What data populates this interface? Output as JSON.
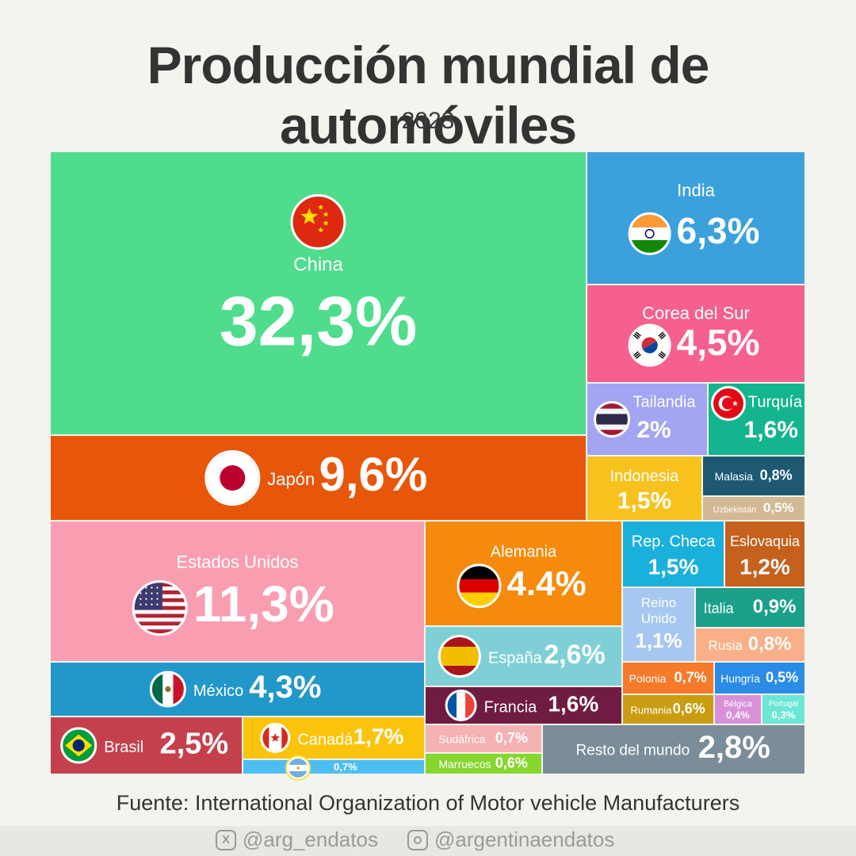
{
  "header": {
    "title": "Producción mundial de automóviles",
    "subtitle": "2023"
  },
  "chart_data": {
    "type": "treemap",
    "unit": "%",
    "items": [
      {
        "name": "China",
        "value": 32.3,
        "label": "32,3%",
        "color": "#4fdc8c",
        "flag": "china-flag-icon"
      },
      {
        "name": "Japón",
        "value": 9.6,
        "label": "9,6%",
        "color": "#e8560a",
        "flag": "japan-flag-icon"
      },
      {
        "name": "India",
        "value": 6.3,
        "label": "6,3%",
        "color": "#3aa1dc",
        "flag": "india-flag-icon"
      },
      {
        "name": "Corea del Sur",
        "value": 4.5,
        "label": "4,5%",
        "color": "#f5608e",
        "flag": "south-korea-flag-icon"
      },
      {
        "name": "Tailandia",
        "value": 2.0,
        "label": "2%",
        "color": "#a3a4f2",
        "flag": "thailand-flag-icon"
      },
      {
        "name": "Turquía",
        "value": 1.6,
        "label": "1,6%",
        "color": "#14b58e",
        "flag": "turkey-flag-icon"
      },
      {
        "name": "Indonesia",
        "value": 1.5,
        "label": "1,5%",
        "color": "#f8c21e",
        "flag": ""
      },
      {
        "name": "Malasia",
        "value": 0.8,
        "label": "0,8%",
        "color": "#1d5a72",
        "flag": ""
      },
      {
        "name": "Uzbekistán",
        "value": 0.5,
        "label": "0,5%",
        "color": "#d3b894",
        "flag": ""
      },
      {
        "name": "Estados Unidos",
        "value": 11.3,
        "label": "11,3%",
        "color": "#f99eb1",
        "flag": "usa-flag-icon"
      },
      {
        "name": "Alemania",
        "value": 4.4,
        "label": "4.4%",
        "color": "#f58a0c",
        "flag": "germany-flag-icon"
      },
      {
        "name": "Rep. Checa",
        "value": 1.5,
        "label": "1,5%",
        "color": "#1ab0dc",
        "flag": ""
      },
      {
        "name": "Eslovaquia",
        "value": 1.2,
        "label": "1,2%",
        "color": "#c6601d",
        "flag": ""
      },
      {
        "name": "Reino Unido",
        "value": 1.1,
        "label": "1,1%",
        "color": "#a6c7f0",
        "flag": ""
      },
      {
        "name": "Italia",
        "value": 0.9,
        "label": "0,9%",
        "color": "#1ba08c",
        "flag": ""
      },
      {
        "name": "Rusia",
        "value": 0.8,
        "label": "0,8%",
        "color": "#f9b089",
        "flag": ""
      },
      {
        "name": "España",
        "value": 2.6,
        "label": "2,6%",
        "color": "#7fd0d6",
        "flag": "spain-flag-icon"
      },
      {
        "name": "México",
        "value": 4.3,
        "label": "4,3%",
        "color": "#2198c9",
        "flag": "mexico-flag-icon"
      },
      {
        "name": "Polonia",
        "value": 0.7,
        "label": "0,7%",
        "color": "#f57a2a",
        "flag": ""
      },
      {
        "name": "Hungría",
        "value": 0.5,
        "label": "0,5%",
        "color": "#2a8ce6",
        "flag": ""
      },
      {
        "name": "Francia",
        "value": 1.6,
        "label": "1,6%",
        "color": "#701c42",
        "flag": "france-flag-icon"
      },
      {
        "name": "Rumania",
        "value": 0.6,
        "label": "0,6%",
        "color": "#c99c12",
        "flag": ""
      },
      {
        "name": "Bélgica",
        "value": 0.4,
        "label": "0,4%",
        "color": "#d890d8",
        "flag": ""
      },
      {
        "name": "Portugal",
        "value": 0.3,
        "label": "0,3%",
        "color": "#6ce6d6",
        "flag": ""
      },
      {
        "name": "Brasil",
        "value": 2.5,
        "label": "2,5%",
        "color": "#c5404d",
        "flag": "brazil-flag-icon"
      },
      {
        "name": "Canadá",
        "value": 1.7,
        "label": "1,7%",
        "color": "#fbc40c",
        "flag": "canada-flag-icon"
      },
      {
        "name": "",
        "value": 0.7,
        "label": "0,7%",
        "color": "#4dbef2",
        "flag": "argentina-flag-icon"
      },
      {
        "name": "Sudáfrica",
        "value": 0.7,
        "label": "0,7%",
        "color": "#f5b2b2",
        "flag": ""
      },
      {
        "name": "Marruecos",
        "value": 0.6,
        "label": "0,6%",
        "color": "#86d62e",
        "flag": ""
      },
      {
        "name": "Resto del mundo",
        "value": 2.8,
        "label": "2,8%",
        "color": "#7a8d99",
        "flag": ""
      }
    ]
  },
  "source": "Fuente: International Organization of Motor vehicle Manufacturers",
  "footer": {
    "twitter_handle": "@arg_endatos",
    "instagram_handle": "@argentinaendatos"
  }
}
